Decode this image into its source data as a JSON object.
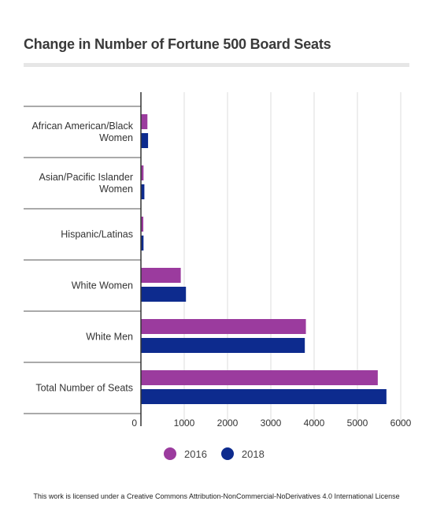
{
  "title": "Change in Number of Fortune 500 Board Seats",
  "footer": "This work is licensed under a Creative Commons Attribution-NonCommercial-NoDerivatives 4.0 International License",
  "chart_data": {
    "type": "bar",
    "orientation": "horizontal",
    "title": "Change in Number of Fortune 500 Board Seats",
    "categories": [
      [
        "African American/Black",
        "Women"
      ],
      [
        "Asian/Pacific Islander",
        "Women"
      ],
      [
        "Hispanic/Latinas"
      ],
      [
        "White Women"
      ],
      [
        "White Men"
      ],
      [
        "Total Number of Seats"
      ]
    ],
    "series": [
      {
        "name": "2016",
        "color": "#9b3b9e",
        "values": [
          150,
          60,
          55,
          920,
          3810,
          5470
        ]
      },
      {
        "name": "2018",
        "color": "#0d2b8e",
        "values": [
          165,
          80,
          60,
          1040,
          3785,
          5670
        ]
      }
    ],
    "xlim": [
      0,
      6000
    ],
    "xticks": [
      0,
      1000,
      2000,
      3000,
      4000,
      5000,
      6000
    ],
    "grid": true,
    "legend_position": "bottom"
  }
}
